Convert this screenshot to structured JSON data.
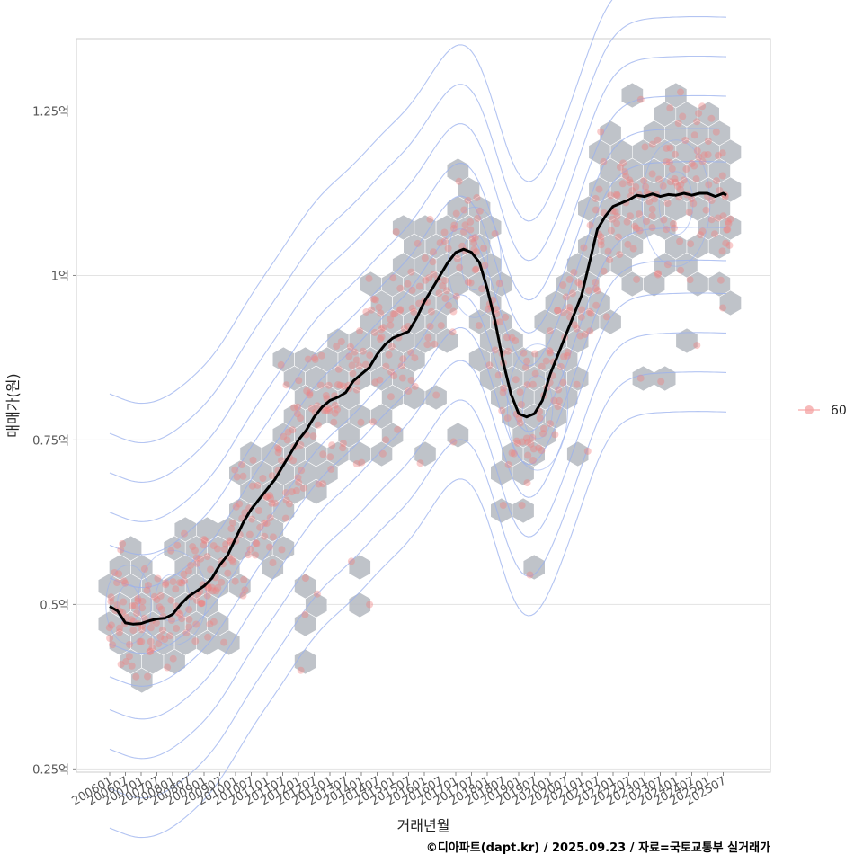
{
  "chart_data": {
    "type": "scatter",
    "title": "",
    "xlabel": "거래년월",
    "ylabel": "매매가(원)",
    "caption": "©디아파트(dapt.kr) / 2025.09.23 / 자료=국토교통부 실거래가",
    "legend": {
      "position": "right",
      "entries": [
        {
          "label": "60",
          "color": "#f08080"
        }
      ]
    },
    "x_tick_labels": [
      "200601",
      "200607",
      "200701",
      "200707",
      "200801",
      "200807",
      "200901",
      "200907",
      "201001",
      "201007",
      "201101",
      "201107",
      "201201",
      "201207",
      "201301",
      "201307",
      "201401",
      "201407",
      "201501",
      "201507",
      "201601",
      "201607",
      "201701",
      "201707",
      "201801",
      "201807",
      "201901",
      "201907",
      "202001",
      "202007",
      "202101",
      "202107",
      "202201",
      "202207",
      "202301",
      "202307",
      "202401",
      "202407",
      "202501",
      "202507"
    ],
    "y_ticks": [
      {
        "value": 0.25,
        "label": "0.25억"
      },
      {
        "value": 0.5,
        "label": "0.5억"
      },
      {
        "value": 0.75,
        "label": "0.75억"
      },
      {
        "value": 1.0,
        "label": "1억"
      },
      {
        "value": 1.25,
        "label": "1.25억"
      }
    ],
    "ylim": [
      0.245,
      1.36
    ],
    "xlim": [
      2005.3,
      2026.3
    ],
    "colors": {
      "hex": "#b4b9c0",
      "point": "#f08080",
      "contour": "#9ab0ee",
      "trend": "#000000",
      "grid": "#e3e3e3",
      "panel_border": "#cccccc"
    },
    "series": [
      {
        "name": "moving-average",
        "x": [
          2006.0,
          2006.25,
          2006.5,
          2006.75,
          2007.0,
          2007.25,
          2007.5,
          2007.75,
          2008.0,
          2008.25,
          2008.5,
          2008.75,
          2009.0,
          2009.25,
          2009.5,
          2009.75,
          2010.0,
          2010.25,
          2010.5,
          2010.75,
          2011.0,
          2011.25,
          2011.5,
          2011.75,
          2012.0,
          2012.25,
          2012.5,
          2012.75,
          2013.0,
          2013.25,
          2013.5,
          2013.75,
          2014.0,
          2014.25,
          2014.5,
          2014.75,
          2015.0,
          2015.25,
          2015.5,
          2015.75,
          2016.0,
          2016.25,
          2016.5,
          2016.75,
          2017.0,
          2017.25,
          2017.5,
          2017.75,
          2018.0,
          2018.25,
          2018.5,
          2018.75,
          2019.0,
          2019.25,
          2019.5,
          2019.75,
          2020.0,
          2020.25,
          2020.5,
          2020.75,
          2021.0,
          2021.25,
          2021.5,
          2021.75,
          2022.0,
          2022.25,
          2022.5,
          2022.75,
          2023.0,
          2023.25,
          2023.5,
          2023.75,
          2024.0,
          2024.25,
          2024.5,
          2024.75,
          2025.0,
          2025.25,
          2025.5,
          2025.6
        ],
        "values": [
          0.497,
          0.49,
          0.472,
          0.47,
          0.471,
          0.475,
          0.478,
          0.479,
          0.485,
          0.5,
          0.512,
          0.52,
          0.528,
          0.54,
          0.56,
          0.575,
          0.6,
          0.625,
          0.645,
          0.66,
          0.675,
          0.69,
          0.71,
          0.73,
          0.75,
          0.765,
          0.785,
          0.8,
          0.81,
          0.815,
          0.822,
          0.84,
          0.85,
          0.86,
          0.88,
          0.895,
          0.905,
          0.91,
          0.915,
          0.935,
          0.96,
          0.98,
          1.0,
          1.02,
          1.035,
          1.04,
          1.035,
          1.02,
          0.98,
          0.93,
          0.87,
          0.82,
          0.79,
          0.785,
          0.79,
          0.81,
          0.85,
          0.88,
          0.91,
          0.94,
          0.97,
          1.02,
          1.07,
          1.09,
          1.105,
          1.11,
          1.115,
          1.122,
          1.12,
          1.124,
          1.12,
          1.123,
          1.122,
          1.125,
          1.122,
          1.125,
          1.125,
          1.12,
          1.125,
          1.122
        ]
      }
    ]
  }
}
